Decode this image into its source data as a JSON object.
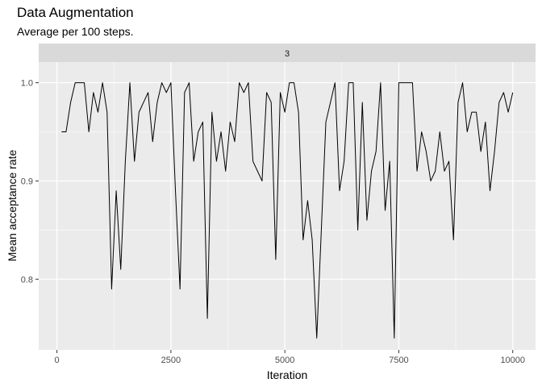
{
  "chart_data": {
    "type": "line",
    "title": "Data Augmentation",
    "subtitle": "Average per 100 steps.",
    "facet_label": "3",
    "xlabel": "Iteration",
    "ylabel": "Mean acceptance rate",
    "xlim": [
      -400,
      10500
    ],
    "ylim": [
      0.728,
      1.021
    ],
    "x_ticks": [
      0,
      2500,
      5000,
      7500,
      10000
    ],
    "x_tick_labels": [
      "0",
      "2500",
      "5000",
      "7500",
      "10000"
    ],
    "y_ticks": [
      0.8,
      0.9,
      1.0
    ],
    "y_tick_labels": [
      "0.8",
      "0.9",
      "1.0"
    ],
    "grid": true,
    "line_color": "#000000",
    "panel_background": "#ebebeb",
    "strip_background": "#d9d9d9",
    "series": [
      {
        "x": [
          100,
          200,
          300,
          400,
          500,
          600,
          700,
          800,
          900,
          1000,
          1100,
          1200,
          1300,
          1400,
          1500,
          1600,
          1700,
          1800,
          1900,
          2000,
          2100,
          2200,
          2300,
          2400,
          2500,
          2600,
          2700,
          2800,
          2900,
          3000,
          3100,
          3200,
          3300,
          3400,
          3500,
          3600,
          3700,
          3800,
          3900,
          4000,
          4100,
          4200,
          4300,
          4400,
          4500,
          4600,
          4700,
          4800,
          4900,
          5000,
          5100,
          5200,
          5300,
          5400,
          5500,
          5600,
          5700,
          5800,
          5900,
          6000,
          6100,
          6200,
          6300,
          6400,
          6500,
          6600,
          6700,
          6800,
          6900,
          7000,
          7100,
          7200,
          7300,
          7400,
          7500,
          7600,
          7700,
          7800,
          7900,
          8000,
          8100,
          8200,
          8300,
          8400,
          8500,
          8600,
          8700,
          8800,
          8900,
          9000,
          9100,
          9200,
          9300,
          9400,
          9500,
          9600,
          9700,
          9800,
          9900,
          10000
        ],
        "y": [
          0.95,
          0.95,
          0.98,
          1.0,
          1.0,
          1.0,
          0.95,
          0.99,
          0.97,
          1.0,
          0.97,
          0.79,
          0.89,
          0.81,
          0.92,
          1.0,
          0.92,
          0.97,
          0.98,
          0.99,
          0.94,
          0.98,
          1.0,
          0.99,
          1.0,
          0.89,
          0.79,
          0.99,
          1.0,
          0.92,
          0.95,
          0.96,
          0.76,
          0.97,
          0.92,
          0.95,
          0.91,
          0.96,
          0.94,
          1.0,
          0.99,
          1.0,
          0.92,
          0.91,
          0.9,
          0.99,
          0.98,
          0.82,
          0.99,
          0.97,
          1.0,
          1.0,
          0.97,
          0.84,
          0.88,
          0.84,
          0.74,
          0.85,
          0.96,
          0.98,
          1.0,
          0.89,
          0.92,
          1.0,
          1.0,
          0.85,
          0.98,
          0.86,
          0.91,
          0.93,
          1.0,
          0.87,
          0.92,
          0.74,
          1.0,
          1.0,
          1.0,
          1.0,
          0.91,
          0.95,
          0.93,
          0.9,
          0.91,
          0.95,
          0.91,
          0.92,
          0.84,
          0.98,
          1.0,
          0.95,
          0.97,
          0.97,
          0.93,
          0.96,
          0.89,
          0.93,
          0.98,
          0.99,
          0.97,
          0.99
        ]
      }
    ]
  }
}
